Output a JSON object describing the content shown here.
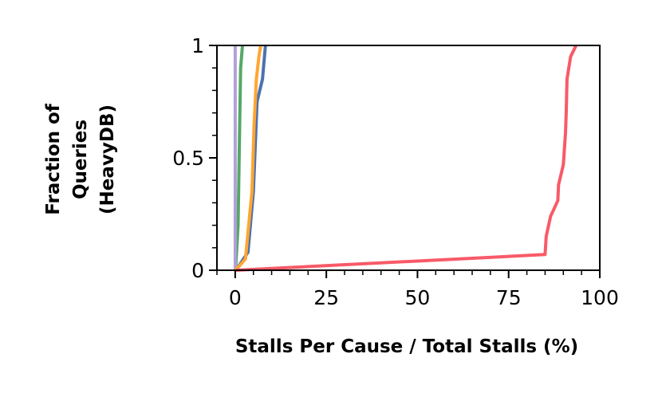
{
  "chart_data": {
    "type": "line",
    "xlabel": "Stalls Per Cause / Total Stalls (%)",
    "ylabel_lines": [
      "Fraction of",
      "Queries",
      "(HeavyDB)"
    ],
    "xlim": [
      -5,
      100
    ],
    "ylim": [
      0,
      1
    ],
    "x_ticks": [
      0,
      25,
      50,
      75,
      100
    ],
    "x_tick_labels": [
      "0",
      "25",
      "50",
      "75",
      "100"
    ],
    "y_ticks": [
      0,
      0.5,
      1
    ],
    "y_tick_labels": [
      "0",
      "0.5",
      "1"
    ],
    "grid": false,
    "series": [
      {
        "color": "#4c72b0",
        "points": [
          [
            0.2,
            0
          ],
          [
            3.5,
            0.08
          ],
          [
            5.0,
            0.35
          ],
          [
            6.0,
            0.75
          ],
          [
            7.5,
            0.85
          ],
          [
            8.3,
            1.0
          ]
        ]
      },
      {
        "color": "#55a868",
        "points": [
          [
            0.1,
            0
          ],
          [
            0.8,
            0.2
          ],
          [
            1.2,
            0.6
          ],
          [
            1.5,
            0.9
          ],
          [
            2.0,
            1.0
          ]
        ]
      },
      {
        "color": "#b2a0d8",
        "points": [
          [
            0.0,
            0
          ],
          [
            0.0,
            1.0
          ]
        ]
      },
      {
        "color": "#ffa630",
        "points": [
          [
            0.1,
            0
          ],
          [
            2.8,
            0.05
          ],
          [
            4.6,
            0.35
          ],
          [
            5.2,
            0.65
          ],
          [
            5.8,
            0.85
          ],
          [
            6.5,
            0.95
          ],
          [
            7.0,
            1.0
          ]
        ]
      },
      {
        "color": "#f85a68",
        "points": [
          [
            0.2,
            0
          ],
          [
            85,
            0.07
          ],
          [
            85.3,
            0.15
          ],
          [
            86.5,
            0.24
          ],
          [
            88.5,
            0.31
          ],
          [
            88.7,
            0.38
          ],
          [
            90.0,
            0.47
          ],
          [
            90.6,
            0.61
          ],
          [
            90.8,
            0.7
          ],
          [
            91.0,
            0.85
          ],
          [
            92.0,
            0.95
          ],
          [
            93.5,
            1.0
          ]
        ]
      }
    ]
  }
}
